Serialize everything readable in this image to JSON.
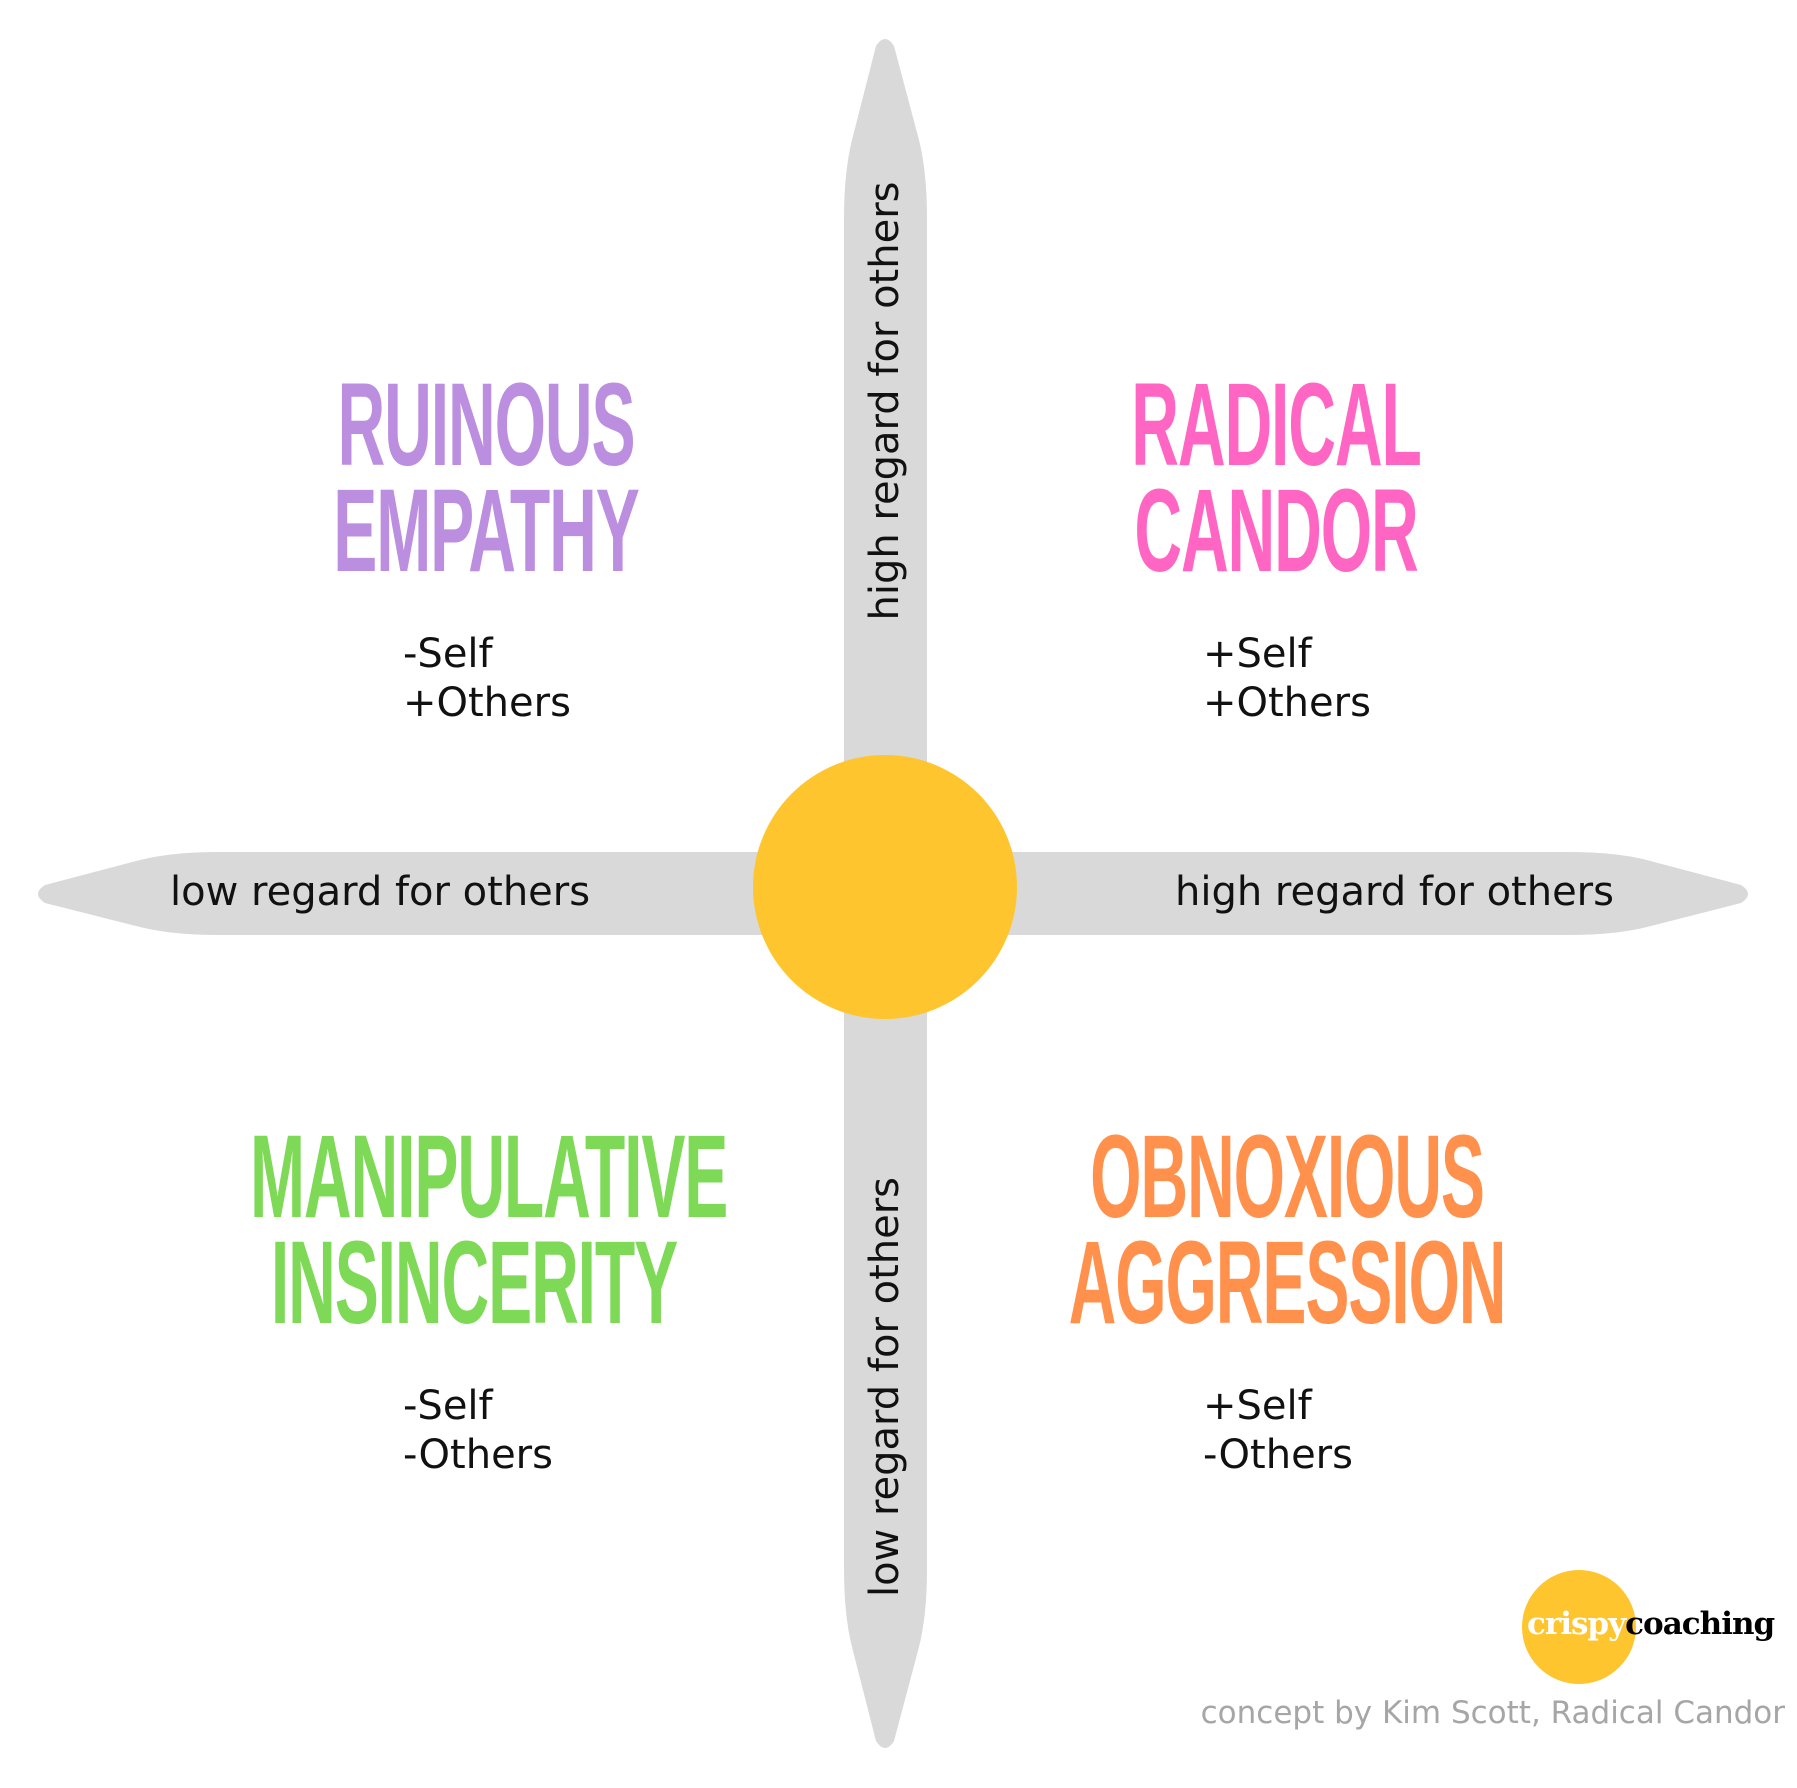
{
  "colors": {
    "axis_bar": "#d9d9d9",
    "center_circle": "#fec52f",
    "ruinous_empathy": "#bb8ee0",
    "radical_candor": "#ff66c4",
    "manipulative_insincerity": "#7ed957",
    "obnoxious_aggression": "#ff914d",
    "logo_circle": "#fec52f",
    "footer_text": "#a6a6a6"
  },
  "axes": {
    "top": "high regard for others",
    "bottom": "low regard for others",
    "left": "low regard for others",
    "right": "high regard for others"
  },
  "quadrants": {
    "top_left": {
      "title": [
        "RUINOUS",
        "EMPATHY"
      ],
      "lines": [
        "-Self",
        "+Others"
      ]
    },
    "top_right": {
      "title": [
        "RADICAL",
        "CANDOR"
      ],
      "lines": [
        "+Self",
        "+Others"
      ]
    },
    "bottom_left": {
      "title": [
        "MANIPULATIVE",
        "INSINCERITY"
      ],
      "lines": [
        "-Self",
        "-Others"
      ]
    },
    "bottom_right": {
      "title": [
        "OBNOXIOUS",
        "AGGRESSION"
      ],
      "lines": [
        "+Self",
        "-Others"
      ]
    }
  },
  "logo": {
    "part1": "crispy",
    "part2": "coaching"
  },
  "footer": "concept by Kim Scott, Radical Candor"
}
